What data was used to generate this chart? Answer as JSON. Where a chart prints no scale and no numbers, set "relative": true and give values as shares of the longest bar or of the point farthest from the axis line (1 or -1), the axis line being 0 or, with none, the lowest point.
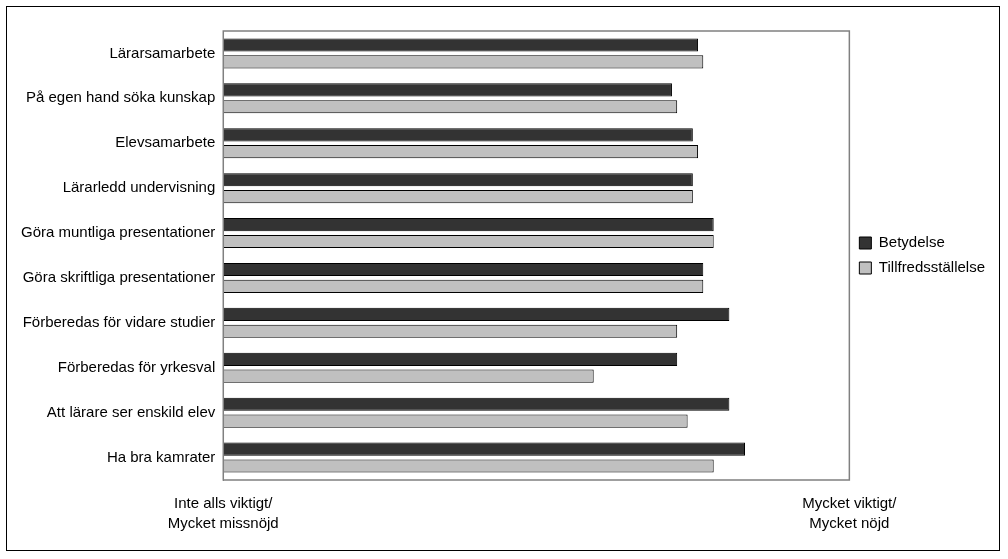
{
  "chart_data": {
    "type": "bar",
    "orientation": "horizontal",
    "relative": true,
    "categories": [
      "Lärarsamarbete",
      "På egen hand söka kunskap",
      "Elevsamarbete",
      "Lärarledd undervisning",
      "Göra muntliga presentationer",
      "Göra skriftliga presentationer",
      "Förberedas för vidare studier",
      "Förberedas för yrkesval",
      "Att lärare ser enskild elev",
      "Ha bra kamrater"
    ],
    "series": [
      {
        "name": "Betydelse",
        "color": "#333333",
        "values": [
          0.91,
          0.86,
          0.9,
          0.9,
          0.94,
          0.92,
          0.97,
          0.87,
          0.97,
          1
        ]
      },
      {
        "name": "Tillfredsställelse",
        "color": "#c0c0c0",
        "values": [
          0.92,
          0.87,
          0.91,
          0.9,
          0.94,
          0.92,
          0.87,
          0.71,
          0.89,
          0.94
        ]
      }
    ],
    "annotations": [
      "Inte alls viktigt/\nMycket missnöjd",
      "Mycket viktigt/\nMycket nöjd"
    ],
    "legend": "right"
  }
}
